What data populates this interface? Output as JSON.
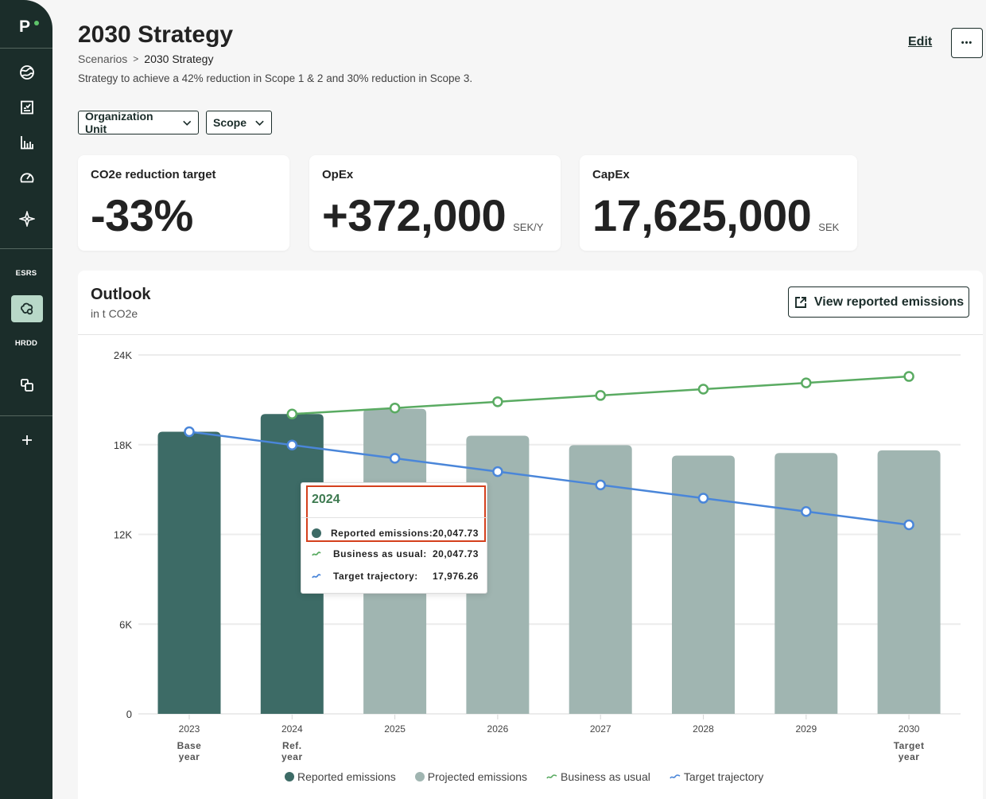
{
  "sidebar": {
    "logo": "P",
    "nav": [
      {
        "id": "climate",
        "icon": "globe"
      },
      {
        "id": "tasks",
        "icon": "checklist"
      },
      {
        "id": "analytics",
        "icon": "bar-chart"
      },
      {
        "id": "performance",
        "icon": "gauge"
      },
      {
        "id": "insights",
        "icon": "sparkle"
      }
    ],
    "section_labels": {
      "esrs": "ESRS",
      "hrdd": "HRDD"
    },
    "esrs_item": {
      "icon": "climate-scenarios",
      "active": true
    },
    "hrdd_item": {
      "icon": "overlapping-squares"
    },
    "add_icon": "plus"
  },
  "header": {
    "title": "2030 Strategy",
    "breadcrumb": {
      "parent": "Scenarios",
      "separator": ">",
      "current": "2030 Strategy"
    },
    "description": "Strategy to achieve a 42% reduction in Scope 1 & 2 and 30% reduction in Scope 3.",
    "edit_label": "Edit",
    "more_label": "•••"
  },
  "filters": [
    {
      "label": "Organization Unit"
    },
    {
      "label": "Scope"
    }
  ],
  "kpis": [
    {
      "label": "CO2e reduction target",
      "value": "-33%",
      "unit": ""
    },
    {
      "label": "OpEx",
      "value": "+372,000",
      "unit": "SEK/Y"
    },
    {
      "label": "CapEx",
      "value": "17,625,000",
      "unit": "SEK"
    }
  ],
  "outlook": {
    "title": "Outlook",
    "subtitle": "in t CO2e",
    "view_button": "View reported emissions"
  },
  "tooltip": {
    "title": "2024",
    "highlighted_rows": 1,
    "rows": [
      {
        "label": "Reported emissions:",
        "value": "20,047.73",
        "marker": "dot"
      },
      {
        "label": "Business as usual:",
        "value": "20,047.73",
        "marker": "line"
      },
      {
        "label": "Target trajectory:",
        "value": "17,976.26",
        "marker": "line"
      }
    ]
  },
  "colors": {
    "sidebar_bg": "#1b2d2a",
    "logo_dot": "#5ec46a",
    "active_nav_bg": "#b8d8c8",
    "reported": "#3d6b66",
    "projected": "#a0b5b1",
    "business_as_usual": "#5aab62",
    "target_trajectory": "#4a86d9",
    "highlight": "#d4401d",
    "tooltip_title": "#3d7a50"
  },
  "chart_data": {
    "type": "bar",
    "title": "Outlook",
    "ylabel": "t CO2e",
    "xlabel": "",
    "categories": [
      "2023",
      "2024",
      "2025",
      "2026",
      "2027",
      "2028",
      "2029",
      "2030"
    ],
    "category_sublabels": [
      [
        "Base",
        "year"
      ],
      [
        "Ref.",
        "year"
      ],
      [],
      [],
      [],
      [],
      [],
      [
        "Target",
        "year"
      ]
    ],
    "ylim": [
      0,
      24000
    ],
    "yticks": [
      0,
      6000,
      12000,
      18000,
      24000
    ],
    "ytick_labels": [
      "0",
      "6K",
      "12K",
      "18K",
      "24K"
    ],
    "grid": true,
    "legend_position": "bottom",
    "series": [
      {
        "name": "Reported emissions",
        "type": "bar",
        "color": "#3d6b66",
        "values": [
          18866,
          20047.73,
          null,
          null,
          null,
          null,
          null,
          null
        ]
      },
      {
        "name": "Projected emissions",
        "type": "bar",
        "color": "#a0b5b1",
        "values": [
          null,
          null,
          20400,
          18600,
          17970,
          17270,
          17440,
          17620
        ]
      },
      {
        "name": "Business as usual",
        "type": "line",
        "color": "#5aab62",
        "values": [
          null,
          20047.73,
          20450,
          20870,
          21290,
          21710,
          22130,
          22560
        ]
      },
      {
        "name": "Target trajectory",
        "type": "line",
        "color": "#4a86d9",
        "values": [
          18866,
          17976.26,
          17087,
          16198,
          15309,
          14419,
          13530,
          12640
        ]
      }
    ]
  }
}
